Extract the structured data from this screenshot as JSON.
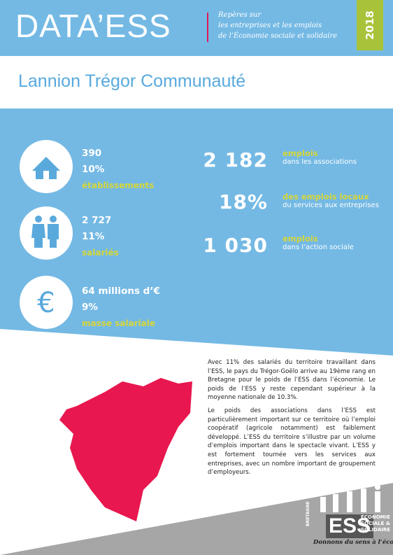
{
  "header": {
    "title": "DATA’ESS",
    "tagline": [
      "Repères sur",
      "les entreprises et les emplois",
      "de l’Économie sociale et solidaire"
    ],
    "year": "2018"
  },
  "territory": "Lannion Trégor Communauté",
  "key_figures": [
    {
      "lines": [
        "390",
        "10%"
      ],
      "label": "établissements"
    },
    {
      "lines": [
        "2 727",
        "11%"
      ],
      "label": "salariés"
    },
    {
      "lines": [
        "64 millions d’€",
        "9%"
      ],
      "label": "masse salariale"
    }
  ],
  "employment": [
    {
      "value": "2 182",
      "label": "emplois",
      "detail": "dans les associations"
    },
    {
      "value": "18%",
      "label": "des emplois locaux",
      "detail": "du services aux entreprises"
    },
    {
      "value": "1 030",
      "label": "emplois",
      "detail": "dans l’action sociale"
    }
  ],
  "text": [
    "Avec 11% des salariés du territoire travaillant dans l’ESS, le pays du Trégor-Goëlo arrive au 19ème rang en Bretagne pour le poids de l’ESS dans l’économie. Le poids de l’ESS y reste cependant supérieur à la moyenne nationale de 10.3%.",
    "Le poids des associations dans l’ESS est particulièrement important sur ce territoire où l’emploi coopératif (agricole notamment) est faiblement développé. L’ESS du territoire s’illustre par un volume d’emplois important dans le spectacle vivant. L’ESS y est fortement tournée vers les services aux entreprises, avec un nombre important de groupement d’employeurs."
  ],
  "logo": {
    "name": "ESS",
    "side": "BRETAGNE",
    "lines": [
      "ÉCONOMIE",
      "SOCIALE &",
      "SOLIDAIRE"
    ],
    "slogan": "Donnons du sens à l’économie"
  }
}
